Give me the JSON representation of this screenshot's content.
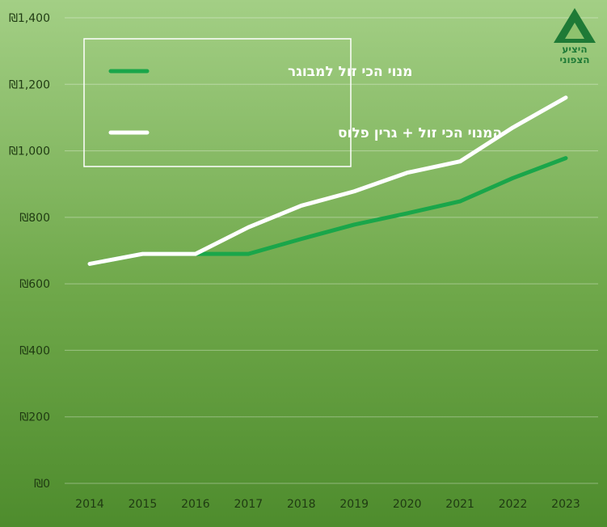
{
  "chart_data": {
    "type": "line",
    "title": "",
    "xlabel": "",
    "ylabel": "",
    "categories": [
      "2014",
      "2015",
      "2016",
      "2017",
      "2018",
      "2019",
      "2020",
      "2021",
      "2022",
      "2023"
    ],
    "ylim": [
      0,
      1400
    ],
    "y_ticks": [
      0,
      200,
      400,
      600,
      800,
      1000,
      1200,
      1400
    ],
    "y_tick_labels": [
      "₪0",
      "₪200",
      "₪400",
      "₪600",
      "₪800",
      "₪1,000",
      "₪1,200",
      "₪1,400"
    ],
    "grid": true,
    "legend_position": "top-left",
    "series": [
      {
        "name": "מנוי הכי זול למבוגר",
        "color": "#1aa64a",
        "values": [
          660,
          690,
          690,
          690,
          735,
          778,
          812,
          848,
          918,
          978
        ]
      },
      {
        "name": "המנוי הכי זול + גרין פלוס",
        "color": "#ffffff",
        "values": [
          660,
          690,
          690,
          770,
          835,
          878,
          934,
          968,
          1070,
          1160
        ]
      }
    ]
  },
  "logo": {
    "text_line1": "היציע",
    "text_line2": "הצפוני",
    "color": "#1e7a36"
  }
}
